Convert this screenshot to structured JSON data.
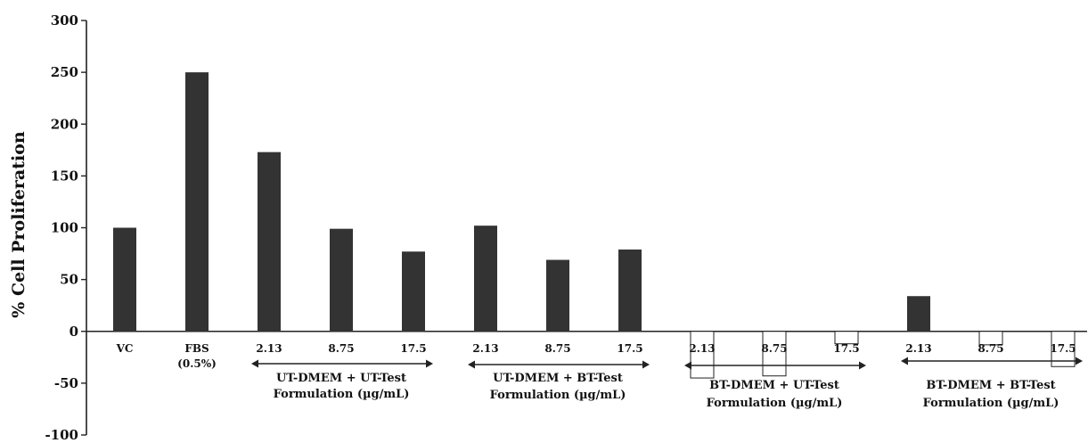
{
  "chart_data": {
    "type": "bar",
    "ylabel": "% Cell Proliferation",
    "ylim": [
      -100,
      300
    ],
    "yticks": [
      "300",
      "250",
      "200",
      "150",
      "100",
      "50",
      "0",
      "-50",
      "-100"
    ],
    "categories": [
      "VC",
      "FBS",
      "2.13",
      "8.75",
      "17.5",
      "2.13",
      "8.75",
      "17.5",
      "2.13",
      "8.75",
      "17.5",
      "2.13",
      "8.75",
      "17.5"
    ],
    "category_sublabels": [
      "",
      "(0.5%)",
      "",
      "",
      "",
      "",
      "",
      "",
      "",
      "",
      "",
      "",
      "",
      ""
    ],
    "values": [
      100,
      250,
      173,
      99,
      77,
      102,
      69,
      79,
      -45,
      -43,
      -12,
      34,
      -13,
      -34
    ],
    "groups": [
      {
        "line1": "UT-DMEM + UT-Test",
        "line2": "Formulation (µg/mL)",
        "first": 2,
        "last": 4
      },
      {
        "line1": "UT-DMEM + BT-Test",
        "line2": "Formulation (µg/mL)",
        "first": 5,
        "last": 7
      },
      {
        "line1": "BT-DMEM + UT-Test",
        "line2": "Formulation (µg/mL)",
        "first": 8,
        "last": 10
      },
      {
        "line1": "BT-DMEM + BT-Test",
        "line2": "Formulation (µg/mL)",
        "first": 11,
        "last": 13
      }
    ],
    "colors": {
      "positive_bar": "#333333",
      "negative_bar": "#ffffff",
      "axis": "#222222"
    },
    "grid": false,
    "legend": "none"
  }
}
